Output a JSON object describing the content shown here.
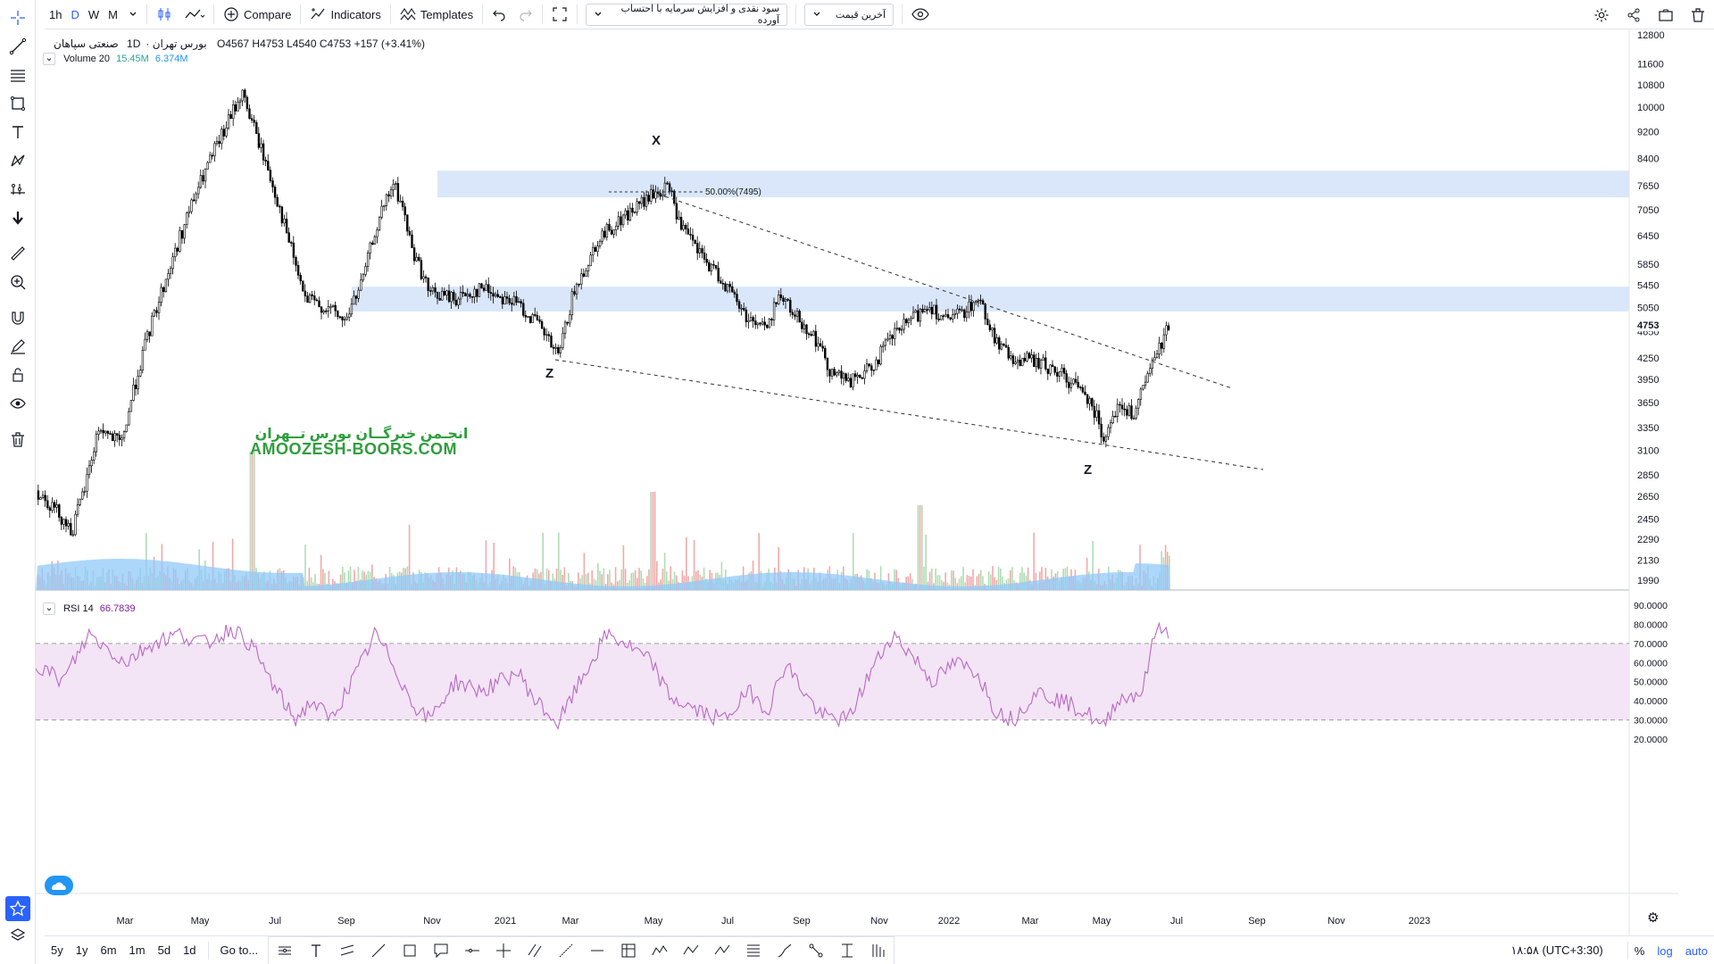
{
  "toolbar": {
    "intervals": [
      "1h",
      "D",
      "W",
      "M"
    ],
    "active_interval": "D",
    "compare_label": "Compare",
    "indicators_label": "Indicators",
    "templates_label": "Templates",
    "dividend_select": "سود نقدی و افزایش سرمایه با احتساب آورده",
    "price_select": "آخرین قیمت"
  },
  "symbol": {
    "name": "صنعتی سپاهان",
    "interval": "1D",
    "exchange": "بورس تهران",
    "open": "O4567",
    "high": "H4753",
    "low": "L4540",
    "close": "C4753",
    "change": "+157 (+3.41%)",
    "last_price": "4753"
  },
  "volume_legend": {
    "label": "Volume 20",
    "v1": "15.45M",
    "v2": "6.374M"
  },
  "rsi_legend": {
    "label": "RSI 14",
    "value": "66.7839"
  },
  "watermark": {
    "fa": "انجـمن خبرگــان بورس تــهران",
    "en": "AMOOZESH-BOORS.COM"
  },
  "annotations": {
    "x_label": "X",
    "z1_label": "Z",
    "z2_label": "Z",
    "fib_label": "50.00%(7495)"
  },
  "price_axis": [
    "12800",
    "11600",
    "10800",
    "10000",
    "9200",
    "8400",
    "7650",
    "7050",
    "6450",
    "5850",
    "5450",
    "5050",
    "4650",
    "4250",
    "3950",
    "3650",
    "3350",
    "3100",
    "2850",
    "2650",
    "2450",
    "2290",
    "2130",
    "1990"
  ],
  "rsi_axis": [
    "90.0000",
    "80.0000",
    "70.0000",
    "60.0000",
    "50.0000",
    "40.0000",
    "30.0000",
    "20.0000"
  ],
  "time_axis": [
    "Mar",
    "May",
    "Jul",
    "Sep",
    "Nov",
    "2021",
    "Mar",
    "May",
    "Jul",
    "Sep",
    "Nov",
    "2022",
    "Mar",
    "May",
    "Jul",
    "Sep",
    "Nov",
    "2023"
  ],
  "bottom": {
    "ranges": [
      "5y",
      "1y",
      "6m",
      "1m",
      "5d",
      "1d"
    ],
    "goto_label": "Go to...",
    "clock": "۱۸:۵۸ (UTC+3:30)",
    "pct_label": "%",
    "log_label": "log",
    "auto_label": "auto"
  },
  "colors": {
    "accent": "#2962ff",
    "up_volume": "#a5d6a7",
    "down_volume": "#ef9a9a",
    "volume_ma": "#90caf9",
    "rsi_line": "#ba68c8",
    "rsi_band": "#f3e5f5",
    "zone": "#d6e4fa"
  }
}
